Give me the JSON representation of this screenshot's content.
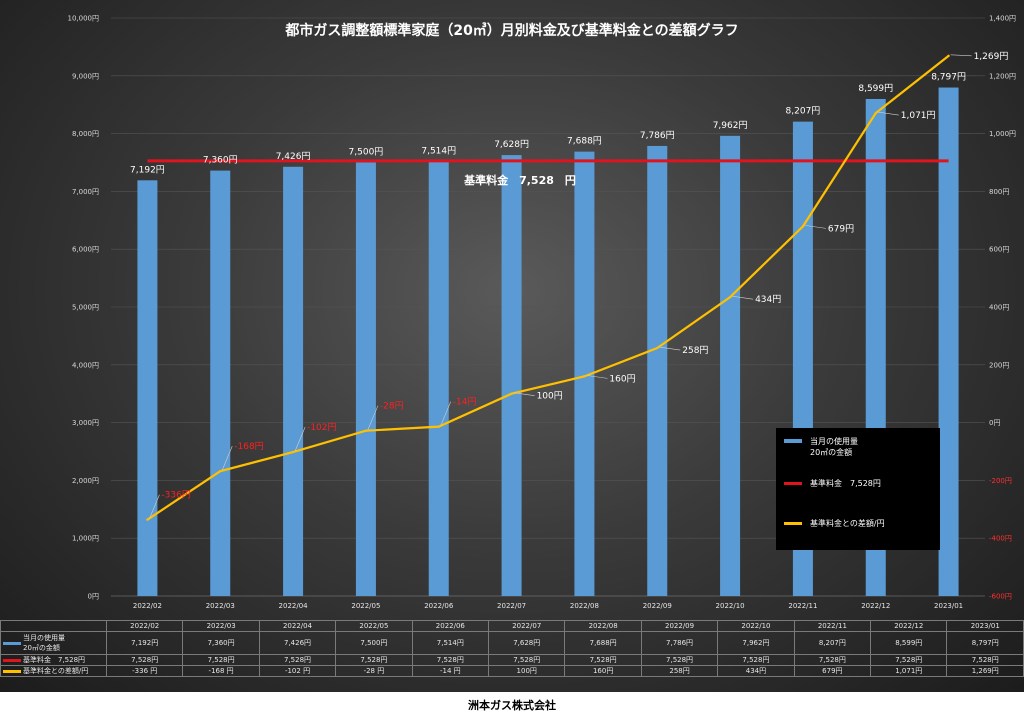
{
  "chart_data": {
    "type": "bar",
    "title": "都市ガス調整額標準家庭（20㎥）月別料金及び基準料金との差額グラフ",
    "categories": [
      "2022/02",
      "2022/03",
      "2022/04",
      "2022/05",
      "2022/06",
      "2022/07",
      "2022/08",
      "2022/09",
      "2022/10",
      "2022/11",
      "2022/12",
      "2023/01"
    ],
    "series": [
      {
        "name": "当月の使用量\n20㎥の金額",
        "axis": "left",
        "type": "bar",
        "color": "#5b9bd5",
        "values": [
          7192,
          7360,
          7426,
          7500,
          7514,
          7628,
          7688,
          7786,
          7962,
          8207,
          8599,
          8797
        ],
        "labels": [
          "7,192円",
          "7,360円",
          "7,426円",
          "7,500円",
          "7,514円",
          "7,628円",
          "7,688円",
          "7,786円",
          "7,962円",
          "8,207円",
          "8,599円",
          "8,797円"
        ]
      },
      {
        "name": "基準料金　7,528円",
        "axis": "left",
        "type": "line",
        "color": "#e0141e",
        "values": [
          7528,
          7528,
          7528,
          7528,
          7528,
          7528,
          7528,
          7528,
          7528,
          7528,
          7528,
          7528
        ]
      },
      {
        "name": "基準料金との差額/円",
        "axis": "right",
        "type": "line",
        "color": "#ffc000",
        "values": [
          -336,
          -168,
          -102,
          -28,
          -14,
          100,
          160,
          258,
          434,
          679,
          1071,
          1269
        ],
        "labels": [
          "-336円",
          "-168円",
          "-102円",
          "-28円",
          "-14円",
          "100円",
          "160円",
          "258円",
          "434円",
          "679円",
          "1,071円",
          "1,269円"
        ]
      }
    ],
    "ylim_left": [
      0,
      10000
    ],
    "ylim_right": [
      -600,
      1400
    ],
    "yticks_left": [
      "0円",
      "1,000円",
      "2,000円",
      "3,000円",
      "4,000円",
      "5,000円",
      "6,000円",
      "7,000円",
      "8,000円",
      "9,000円",
      "10,000円"
    ],
    "yticks_right": [
      "-600円",
      "-400円",
      "-200円",
      "0円",
      "200円",
      "400円",
      "600円",
      "800円",
      "1,000円",
      "1,200円",
      "1,400円"
    ],
    "base_label": "基準料金　7,528　円",
    "legend_position": "bottom-right"
  },
  "legend": {
    "items": [
      {
        "label": "当月の使用量\n20㎥の金額",
        "color": "#5b9bd5"
      },
      {
        "label": "基準料金　7,528円",
        "color": "#e0141e"
      },
      {
        "label": "基準料金との差額/円",
        "color": "#ffc000"
      }
    ]
  },
  "data_table": {
    "rows": [
      {
        "key": "当月の使用量\n20㎥の金額",
        "color": "#5b9bd5",
        "values": [
          "7,192円",
          "7,360円",
          "7,426円",
          "7,500円",
          "7,514円",
          "7,628円",
          "7,688円",
          "7,786円",
          "7,962円",
          "8,207円",
          "8,599円",
          "8,797円"
        ]
      },
      {
        "key": "基準料金　7,528円",
        "color": "#e0141e",
        "values": [
          "7,528円",
          "7,528円",
          "7,528円",
          "7,528円",
          "7,528円",
          "7,528円",
          "7,528円",
          "7,528円",
          "7,528円",
          "7,528円",
          "7,528円",
          "7,528円"
        ]
      },
      {
        "key": "基準料金との差額/円",
        "color": "#ffc000",
        "values": [
          "-336 円",
          "-168 円",
          "-102 円",
          "-28 円",
          "-14 円",
          "100円",
          "160円",
          "258円",
          "434円",
          "679円",
          "1,071円",
          "1,269円"
        ]
      }
    ]
  },
  "footer": "洲本ガス株式会社"
}
